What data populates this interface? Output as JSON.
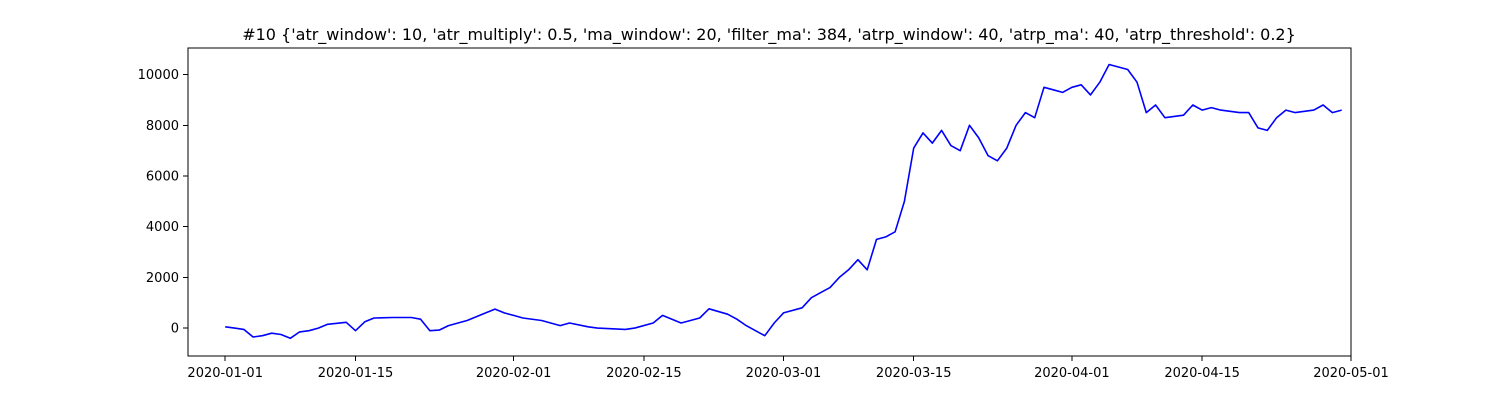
{
  "chart_data": {
    "type": "line",
    "title": "#10 {'atr_window': 10, 'atr_multiply': 0.5, 'ma_window': 20, 'filter_ma': 384, 'atrp_window': 40, 'atrp_ma': 40, 'atrp_threshold': 0.2}",
    "xlabel": "",
    "ylabel": "",
    "x_type": "date",
    "xlim": [
      "2019-12-28",
      "2020-05-01"
    ],
    "ylim": [
      -1100,
      11050
    ],
    "x_ticks": [
      "2020-01-01",
      "2020-01-15",
      "2020-02-01",
      "2020-02-15",
      "2020-03-01",
      "2020-03-15",
      "2020-04-01",
      "2020-04-15",
      "2020-05-01"
    ],
    "y_ticks": [
      0,
      2000,
      4000,
      6000,
      8000,
      10000
    ],
    "grid": false,
    "series_color": "#0000ff",
    "series": [
      {
        "x": [
          "2020-01-01",
          "2020-01-02",
          "2020-01-03",
          "2020-01-04",
          "2020-01-05",
          "2020-01-06",
          "2020-01-07",
          "2020-01-08",
          "2020-01-09",
          "2020-01-10",
          "2020-01-11",
          "2020-01-12",
          "2020-01-14",
          "2020-01-15",
          "2020-01-16",
          "2020-01-17",
          "2020-01-19",
          "2020-01-21",
          "2020-01-22",
          "2020-01-23",
          "2020-01-24",
          "2020-01-25",
          "2020-01-27",
          "2020-01-29",
          "2020-01-30",
          "2020-01-31",
          "2020-02-01",
          "2020-02-02",
          "2020-02-04",
          "2020-02-06",
          "2020-02-07",
          "2020-02-09",
          "2020-02-10",
          "2020-02-13",
          "2020-02-14",
          "2020-02-16",
          "2020-02-17",
          "2020-02-19",
          "2020-02-20",
          "2020-02-21",
          "2020-02-22",
          "2020-02-24",
          "2020-02-25",
          "2020-02-26",
          "2020-02-27",
          "2020-02-28",
          "2020-02-29",
          "2020-03-01",
          "2020-03-03",
          "2020-03-04",
          "2020-03-05",
          "2020-03-06",
          "2020-03-07",
          "2020-03-08",
          "2020-03-09",
          "2020-03-10",
          "2020-03-11",
          "2020-03-12",
          "2020-03-13",
          "2020-03-14",
          "2020-03-15",
          "2020-03-16",
          "2020-03-17",
          "2020-03-18",
          "2020-03-19",
          "2020-03-20",
          "2020-03-21",
          "2020-03-22",
          "2020-03-23",
          "2020-03-24",
          "2020-03-25",
          "2020-03-26",
          "2020-03-27",
          "2020-03-28",
          "2020-03-29",
          "2020-03-30",
          "2020-03-31",
          "2020-04-01",
          "2020-04-02",
          "2020-04-03",
          "2020-04-04",
          "2020-04-05",
          "2020-04-06",
          "2020-04-07",
          "2020-04-08",
          "2020-04-09",
          "2020-04-10",
          "2020-04-11",
          "2020-04-13",
          "2020-04-14",
          "2020-04-15",
          "2020-04-16",
          "2020-04-17",
          "2020-04-19",
          "2020-04-20",
          "2020-04-21",
          "2020-04-22",
          "2020-04-23",
          "2020-04-24",
          "2020-04-25",
          "2020-04-27",
          "2020-04-28",
          "2020-04-29",
          "2020-04-30"
        ],
        "y": [
          50,
          0,
          -50,
          -350,
          -300,
          -200,
          -250,
          -400,
          -150,
          -100,
          0,
          150,
          230,
          -100,
          250,
          400,
          420,
          420,
          350,
          -100,
          -80,
          100,
          300,
          600,
          750,
          600,
          500,
          400,
          300,
          100,
          200,
          50,
          0,
          -50,
          0,
          200,
          500,
          200,
          300,
          400,
          760,
          550,
          350,
          100,
          -100,
          -300,
          200,
          600,
          800,
          1200,
          1400,
          1600,
          2000,
          2300,
          2700,
          2300,
          3500,
          3600,
          3800,
          5000,
          7100,
          7700,
          7300,
          7800,
          7200,
          7000,
          8000,
          7500,
          6800,
          6600,
          7100,
          8000,
          8500,
          8300,
          9500,
          9400,
          9300,
          9500,
          9600,
          9200,
          9700,
          10400,
          10300,
          10200,
          9700,
          8500,
          8800,
          8300,
          8400,
          8800,
          8600,
          8700,
          8600,
          8500,
          8500,
          7900,
          7800,
          8300,
          8600,
          8500,
          8600,
          8800,
          8500,
          8600
        ]
      }
    ]
  }
}
